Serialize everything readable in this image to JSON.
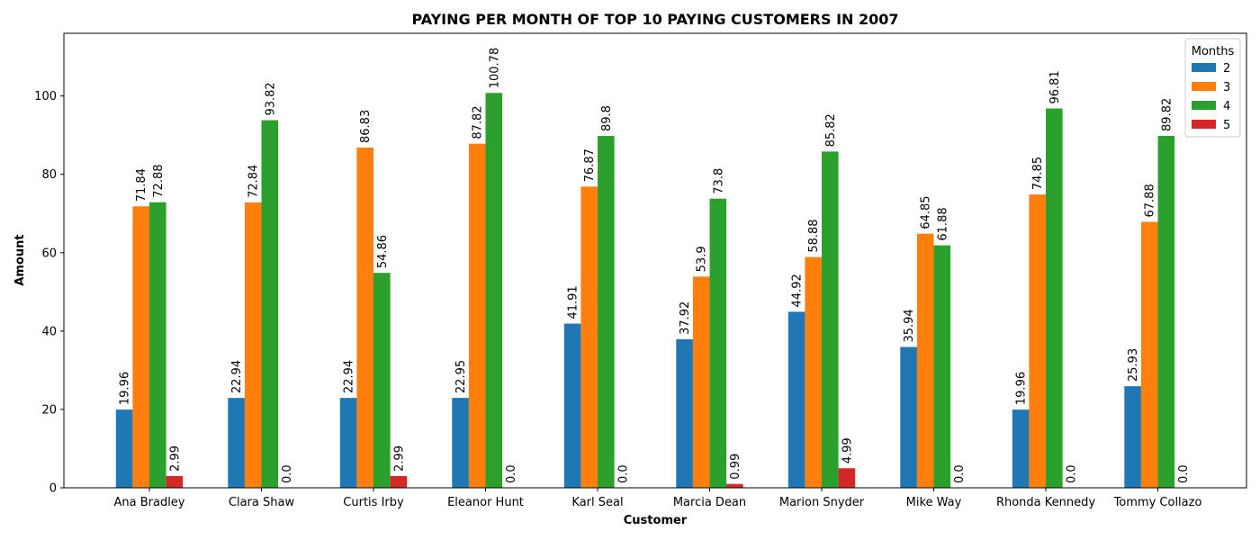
{
  "chart_data": {
    "type": "bar",
    "title": "PAYING PER MONTH OF TOP 10 PAYING CUSTOMERS IN 2007",
    "xlabel": "Customer",
    "ylabel": "Amount",
    "ylim": [
      0,
      116
    ],
    "yticks": [
      0,
      20,
      40,
      60,
      80,
      100
    ],
    "categories": [
      "Ana Bradley",
      "Clara Shaw",
      "Curtis Irby",
      "Eleanor Hunt",
      "Karl Seal",
      "Marcia Dean",
      "Marion Snyder",
      "Mike Way",
      "Rhonda Kennedy",
      "Tommy Collazo"
    ],
    "legend": {
      "title": "Months",
      "position": "top-right"
    },
    "series": [
      {
        "name": "2",
        "color": "#1f77b4",
        "values": [
          19.96,
          22.94,
          22.94,
          22.95,
          41.91,
          37.92,
          44.92,
          35.94,
          19.96,
          25.93
        ]
      },
      {
        "name": "3",
        "color": "#ff7f0e",
        "values": [
          71.84,
          72.84,
          86.83,
          87.82,
          76.87,
          53.9,
          58.88,
          64.85,
          74.85,
          67.88
        ]
      },
      {
        "name": "4",
        "color": "#2ca02c",
        "values": [
          72.88,
          93.82,
          54.86,
          100.78,
          89.8,
          73.8,
          85.82,
          61.88,
          96.81,
          89.82
        ]
      },
      {
        "name": "5",
        "color": "#d62728",
        "values": [
          2.99,
          0.0,
          2.99,
          0.0,
          0.0,
          0.99,
          4.99,
          0.0,
          0.0,
          0.0
        ]
      }
    ],
    "data_labels": [
      [
        "19.96",
        "22.94",
        "22.94",
        "22.95",
        "41.91",
        "37.92",
        "44.92",
        "35.94",
        "19.96",
        "25.93"
      ],
      [
        "71.84",
        "72.84",
        "86.83",
        "87.82",
        "76.87",
        "53.9",
        "58.88",
        "64.85",
        "74.85",
        "67.88"
      ],
      [
        "72.88",
        "93.82",
        "54.86",
        "100.78",
        "89.8",
        "73.8",
        "85.82",
        "61.88",
        "96.81",
        "89.82"
      ],
      [
        "2.99",
        "0.0",
        "2.99",
        "0.0",
        "0.0",
        "0.99",
        "4.99",
        "0.0",
        "0.0",
        "0.0"
      ]
    ],
    "grid": false
  }
}
